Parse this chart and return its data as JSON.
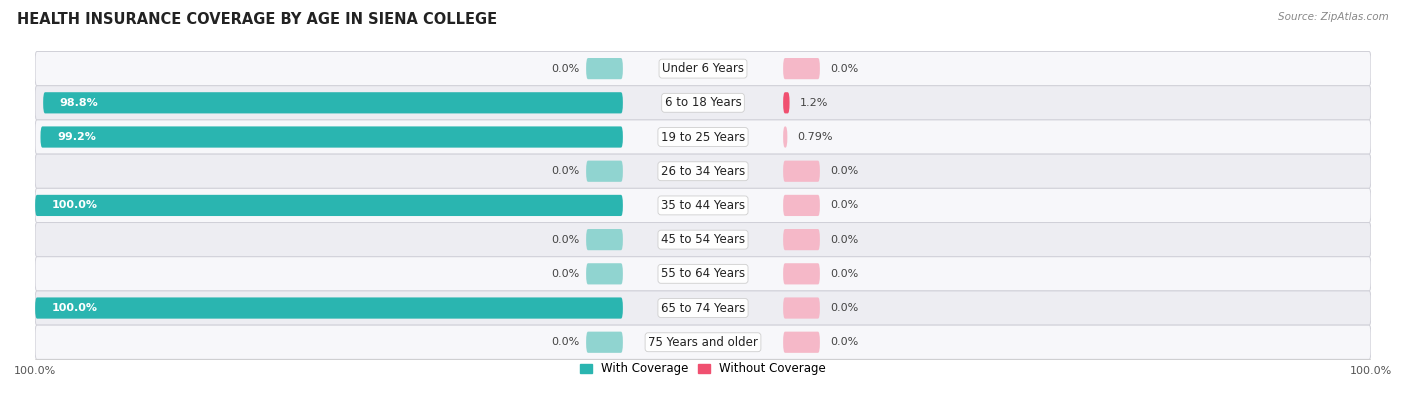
{
  "title": "HEALTH INSURANCE COVERAGE BY AGE IN SIENA COLLEGE",
  "source": "Source: ZipAtlas.com",
  "categories": [
    "Under 6 Years",
    "6 to 18 Years",
    "19 to 25 Years",
    "26 to 34 Years",
    "35 to 44 Years",
    "45 to 54 Years",
    "55 to 64 Years",
    "65 to 74 Years",
    "75 Years and older"
  ],
  "with_coverage": [
    0.0,
    98.8,
    99.2,
    0.0,
    100.0,
    0.0,
    0.0,
    100.0,
    0.0
  ],
  "without_coverage": [
    0.0,
    1.2,
    0.79,
    0.0,
    0.0,
    0.0,
    0.0,
    0.0,
    0.0
  ],
  "with_coverage_labels": [
    "0.0%",
    "98.8%",
    "99.2%",
    "0.0%",
    "100.0%",
    "0.0%",
    "0.0%",
    "100.0%",
    "0.0%"
  ],
  "without_coverage_labels": [
    "0.0%",
    "1.2%",
    "0.79%",
    "0.0%",
    "0.0%",
    "0.0%",
    "0.0%",
    "0.0%",
    "0.0%"
  ],
  "color_with_full": "#2ab5b0",
  "color_with_zero": "#90d4d0",
  "color_without_full": "#f05070",
  "color_without_zero": "#f5b8c8",
  "bg_row_alt": "#ededf2",
  "bg_row_normal": "#f7f7fa",
  "bar_height": 0.62,
  "min_bar_display": 3.0,
  "zero_bar_display": 5.5,
  "legend_with": "With Coverage",
  "legend_without": "Without Coverage",
  "title_fontsize": 10.5,
  "label_fontsize": 8,
  "category_fontsize": 8.5,
  "axis_label_fontsize": 8,
  "source_fontsize": 7.5
}
